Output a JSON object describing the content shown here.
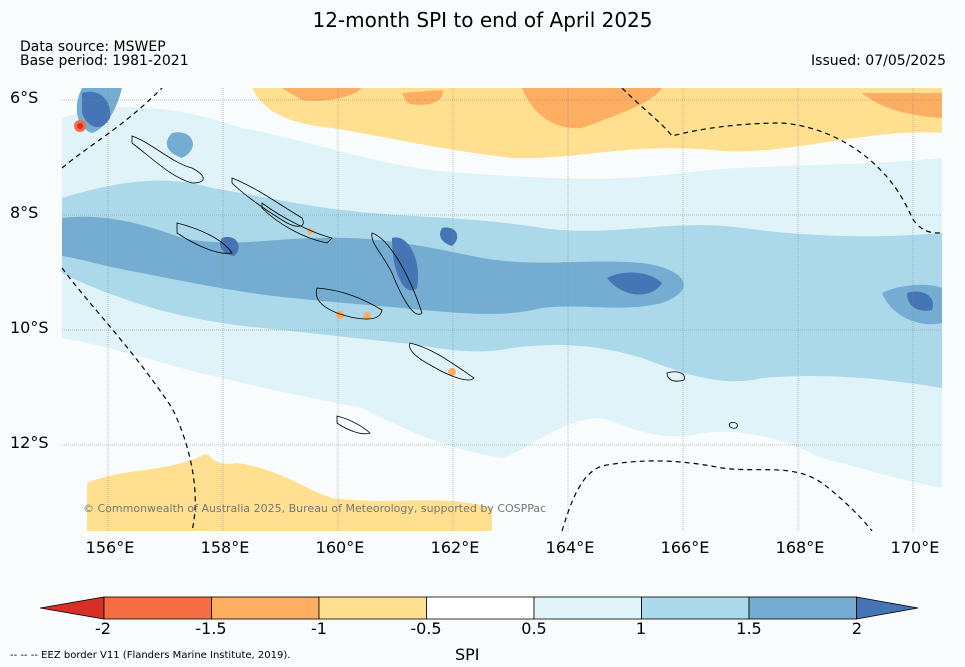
{
  "title": "12-month SPI to end of April 2025",
  "data_source": "Data source: MSWEP",
  "base_period": "Base period: 1981-2021",
  "issued": "Issued: 07/05/2025",
  "lat_labels": [
    "6°S",
    "8°S",
    "10°S",
    "12°S"
  ],
  "lon_labels": [
    "156°E",
    "158°E",
    "160°E",
    "162°E",
    "164°E",
    "166°E",
    "168°E",
    "170°E"
  ],
  "copyright": "© Commonwealth of Australia 2025, Bureau of Meteorology, supported by COSPPac",
  "colorbar": {
    "label": "SPI",
    "ticks": [
      "-2",
      "-1.5",
      "-1",
      "-0.5",
      "0.5",
      "1",
      "1.5",
      "2"
    ],
    "colors": [
      "#d73027",
      "#f46d43",
      "#fdae61",
      "#fee090",
      "#ffffff",
      "#e0f3f8",
      "#abd9e9",
      "#74add1",
      "#4575b4"
    ]
  },
  "eez_note": "--  --  -- EEZ border V11 (Flanders Marine Institute, 2019).",
  "map_colors": {
    "ocean_background": "#f8fcfd",
    "land_outline": "#000000",
    "grid": "#888888"
  }
}
